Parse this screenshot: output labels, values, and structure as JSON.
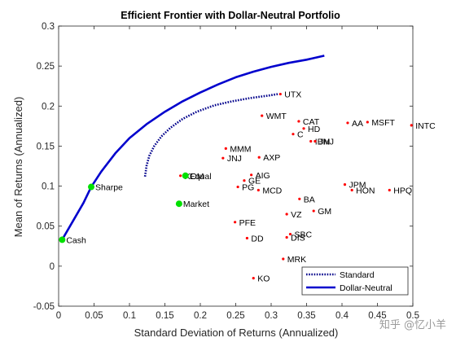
{
  "chart_data": {
    "type": "scatter",
    "title": "Efficient Frontier with Dollar-Neutral Portfolio",
    "xlabel": "Standard Deviation of Returns (Annualized)",
    "ylabel": "Mean of Returns (Annualized)",
    "xlim": [
      0,
      0.5
    ],
    "ylim": [
      -0.05,
      0.3
    ],
    "x_ticks": [
      "0",
      "0.05",
      "0.1",
      "0.15",
      "0.2",
      "0.25",
      "0.3",
      "0.35",
      "0.4",
      "0.45",
      "0.5"
    ],
    "y_ticks": [
      "-0.05",
      "0",
      "0.05",
      "0.1",
      "0.15",
      "0.2",
      "0.25",
      "0.3"
    ],
    "grid": false,
    "legend_position": "bottom-right",
    "series": [
      {
        "name": "Standard",
        "type": "line",
        "style": "dotted",
        "color": "#00008B",
        "points": [
          [
            0.122,
            0.112
          ],
          [
            0.124,
            0.125
          ],
          [
            0.128,
            0.138
          ],
          [
            0.135,
            0.15
          ],
          [
            0.145,
            0.162
          ],
          [
            0.158,
            0.173
          ],
          [
            0.175,
            0.184
          ],
          [
            0.195,
            0.193
          ],
          [
            0.22,
            0.201
          ],
          [
            0.245,
            0.206
          ],
          [
            0.27,
            0.21
          ],
          [
            0.295,
            0.213
          ],
          [
            0.31,
            0.215
          ]
        ]
      },
      {
        "name": "Dollar-Neutral",
        "type": "line",
        "style": "solid",
        "color": "#0000CD",
        "points": [
          [
            0.005,
            0.033
          ],
          [
            0.02,
            0.056
          ],
          [
            0.035,
            0.079
          ],
          [
            0.046,
            0.099
          ],
          [
            0.06,
            0.118
          ],
          [
            0.08,
            0.141
          ],
          [
            0.1,
            0.16
          ],
          [
            0.125,
            0.178
          ],
          [
            0.15,
            0.193
          ],
          [
            0.175,
            0.206
          ],
          [
            0.2,
            0.217
          ],
          [
            0.225,
            0.227
          ],
          [
            0.25,
            0.236
          ],
          [
            0.275,
            0.243
          ],
          [
            0.3,
            0.249
          ],
          [
            0.325,
            0.254
          ],
          [
            0.35,
            0.258
          ],
          [
            0.375,
            0.263
          ]
        ]
      }
    ],
    "assets": [
      {
        "label": "UTX",
        "x": 0.313,
        "y": 0.215
      },
      {
        "label": "WMT",
        "x": 0.287,
        "y": 0.188
      },
      {
        "label": "CAT",
        "x": 0.339,
        "y": 0.181
      },
      {
        "label": "AA",
        "x": 0.408,
        "y": 0.179
      },
      {
        "label": "MSFT",
        "x": 0.436,
        "y": 0.18
      },
      {
        "label": "INTC",
        "x": 0.498,
        "y": 0.176
      },
      {
        "label": "HD",
        "x": 0.346,
        "y": 0.172
      },
      {
        "label": "C",
        "x": 0.331,
        "y": 0.165
      },
      {
        "label": "IBM",
        "x": 0.356,
        "y": 0.156
      },
      {
        "label": "JNJ",
        "x": 0.362,
        "y": 0.156
      },
      {
        "label": "MMM",
        "x": 0.236,
        "y": 0.147
      },
      {
        "label": "JNJ",
        "x": 0.232,
        "y": 0.135
      },
      {
        "label": "AXP",
        "x": 0.283,
        "y": 0.136
      },
      {
        "label": "AIG",
        "x": 0.272,
        "y": 0.114
      },
      {
        "label": "GE",
        "x": 0.262,
        "y": 0.107
      },
      {
        "label": "XOM",
        "x": 0.172,
        "y": 0.113
      },
      {
        "label": "PG",
        "x": 0.253,
        "y": 0.099
      },
      {
        "label": "MCD",
        "x": 0.282,
        "y": 0.095
      },
      {
        "label": "JPM",
        "x": 0.404,
        "y": 0.102
      },
      {
        "label": "HON",
        "x": 0.414,
        "y": 0.095
      },
      {
        "label": "HPQ",
        "x": 0.467,
        "y": 0.095
      },
      {
        "label": "BA",
        "x": 0.34,
        "y": 0.084
      },
      {
        "label": "GM",
        "x": 0.36,
        "y": 0.069
      },
      {
        "label": "VZ",
        "x": 0.322,
        "y": 0.065
      },
      {
        "label": "PFE",
        "x": 0.249,
        "y": 0.055
      },
      {
        "label": "DD",
        "x": 0.266,
        "y": 0.035
      },
      {
        "label": "SBC",
        "x": 0.327,
        "y": 0.04
      },
      {
        "label": "DIS",
        "x": 0.322,
        "y": 0.036
      },
      {
        "label": "MRK",
        "x": 0.317,
        "y": 0.009
      },
      {
        "label": "KO",
        "x": 0.275,
        "y": -0.015
      }
    ],
    "asset_color": "#FF0000",
    "special_points": [
      {
        "label": "Sharpe",
        "x": 0.046,
        "y": 0.099
      },
      {
        "label": "Equal",
        "x": 0.179,
        "y": 0.113
      },
      {
        "label": "Market",
        "x": 0.17,
        "y": 0.078
      },
      {
        "label": "Cash",
        "x": 0.005,
        "y": 0.033
      }
    ],
    "special_color": "#00E000"
  },
  "watermark": "知乎 @忆小羊"
}
